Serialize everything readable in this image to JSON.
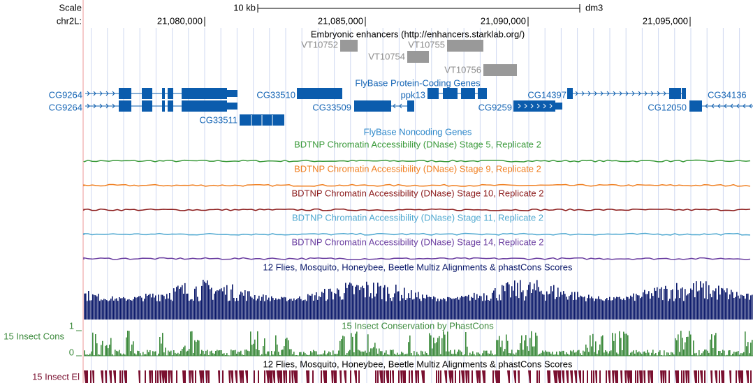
{
  "header": {
    "scale_label": "Scale",
    "chrom_label": "chr2L:",
    "scale_bar": "10 kb",
    "assembly": "dm3"
  },
  "ruler": [
    "21,080,000",
    "21,085,000",
    "21,090,000",
    "21,095,000"
  ],
  "enhancers": {
    "title": "Embryonic enhancers (http://enhancers.starklab.org/)",
    "items": [
      "VT10752",
      "VT10754",
      "VT10755",
      "VT10756"
    ]
  },
  "genes": {
    "title": "FlyBase Protein-Coding Genes",
    "labels": [
      "CG9264",
      "CG9264",
      "CG33510",
      "CG33509",
      "ppk13",
      "CG9259",
      "CG14397",
      "CG12050",
      "CG34136",
      "CG33511"
    ]
  },
  "noncoding": {
    "title": "FlyBase Noncoding Genes"
  },
  "dnase": [
    "BDTNP Chromatin Accessibility (DNase) Stage 5, Replicate 2",
    "BDTNP Chromatin Accessibility (DNase) Stage 9, Replicate 2",
    "BDTNP Chromatin Accessibility (DNase) Stage 10, Replicate 2",
    "BDTNP Chromatin Accessibility (DNase) Stage 11, Replicate 2",
    "BDTNP Chromatin Accessibility (DNase) Stage 14, Replicate 2"
  ],
  "multiz": {
    "title": "12 Flies, Mosquito, Honeybee, Beetle Multiz Alignments & phastCons Scores"
  },
  "cons": {
    "label": "15 Insect Cons",
    "title": "15 Insect Conservation by PhastCons",
    "axis_top": "1",
    "axis_bottom": "0"
  },
  "elements": {
    "title": "12 Flies, Mosquito, Honeybee, Beetle Multiz Alignments & phastCons Scores",
    "label": "15 Insect El"
  }
}
